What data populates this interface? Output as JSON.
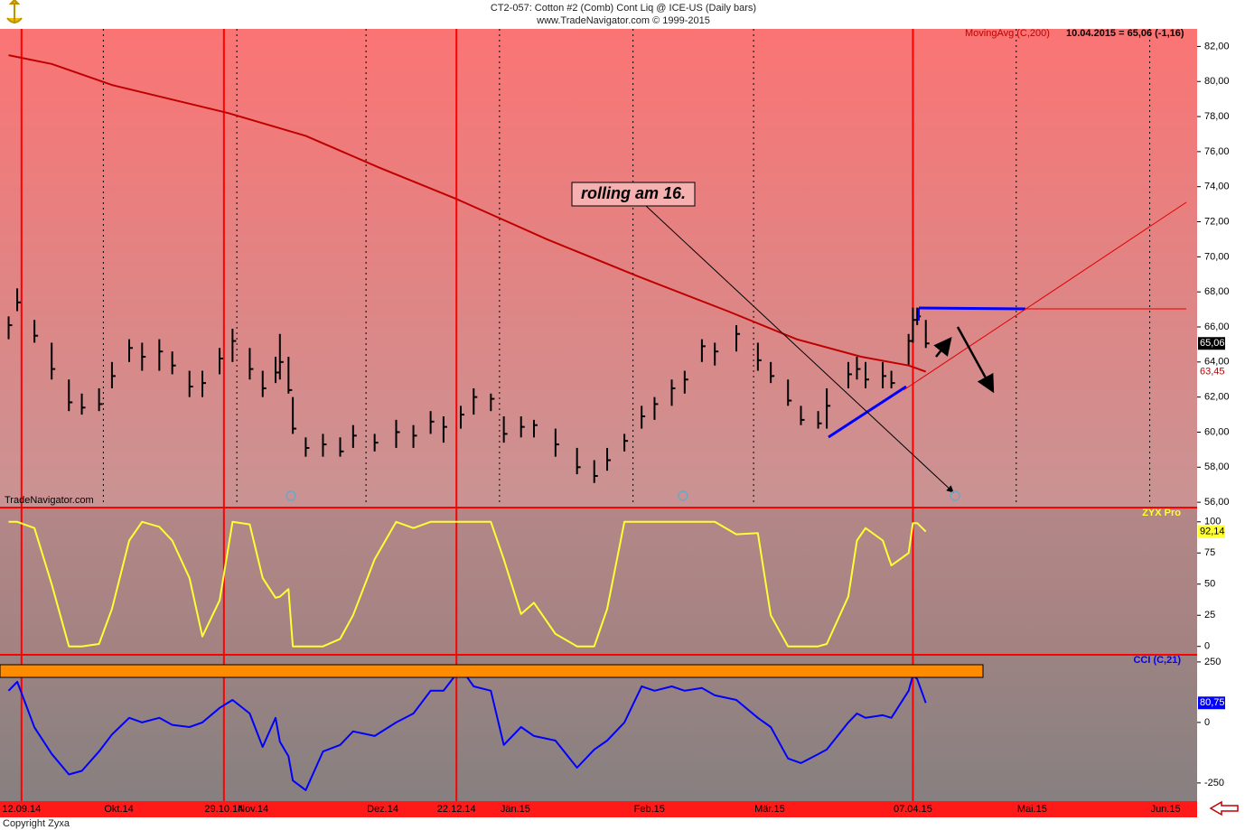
{
  "chart_data": [
    {
      "type": "ohlc",
      "title": "CT2-057:  Cotton #2 (Comb) Cont Liq @ ICE-US  (Daily bars)",
      "subtitle": "www.TradeNavigator.com © 1999-2015",
      "watermark": "TradeNavigator.com",
      "readout": "10.04.2015 = 65,06 (-1,16)",
      "annotations": [
        "rolling am 16."
      ],
      "color": "#000000",
      "xlim": [
        "2014-09-07",
        "2015-06-12"
      ],
      "ylim": [
        55.8,
        83
      ],
      "yticks": [
        {
          "value": 56,
          "label": "56,00"
        },
        {
          "value": 58,
          "label": "58,00"
        },
        {
          "value": 60,
          "label": "60,00"
        },
        {
          "value": 62,
          "label": "62,00"
        },
        {
          "value": 64,
          "label": "64,00"
        },
        {
          "value": 66,
          "label": "66,00"
        },
        {
          "value": 68,
          "label": "68,00"
        },
        {
          "value": 70,
          "label": "70,00"
        },
        {
          "value": 72,
          "label": "72,00"
        },
        {
          "value": 74,
          "label": "74,00"
        },
        {
          "value": 76,
          "label": "76,00"
        },
        {
          "value": 78,
          "label": "78,00"
        },
        {
          "value": 80,
          "label": "80,00"
        },
        {
          "value": 82,
          "label": "82,00"
        }
      ],
      "x": [
        "2014-09-09",
        "2014-09-11",
        "2014-09-15",
        "2014-09-19",
        "2014-09-23",
        "2014-09-26",
        "2014-09-30",
        "2014-10-03",
        "2014-10-07",
        "2014-10-10",
        "2014-10-14",
        "2014-10-17",
        "2014-10-21",
        "2014-10-24",
        "2014-10-28",
        "2014-10-31",
        "2014-11-04",
        "2014-11-07",
        "2014-11-10",
        "2014-11-11",
        "2014-11-13",
        "2014-11-14",
        "2014-11-17",
        "2014-11-21",
        "2014-11-25",
        "2014-11-28",
        "2014-12-03",
        "2014-12-08",
        "2014-12-12",
        "2014-12-16",
        "2014-12-19",
        "2014-12-23",
        "2014-12-26",
        "2014-12-30",
        "2015-01-02",
        "2015-01-06",
        "2015-01-09",
        "2015-01-14",
        "2015-01-19",
        "2015-01-23",
        "2015-01-26",
        "2015-01-30",
        "2015-02-03",
        "2015-02-06",
        "2015-02-10",
        "2015-02-13",
        "2015-02-17",
        "2015-02-20",
        "2015-02-25",
        "2015-03-02",
        "2015-03-05",
        "2015-03-09",
        "2015-03-12",
        "2015-03-16",
        "2015-03-18",
        "2015-03-23",
        "2015-03-25",
        "2015-03-27",
        "2015-03-31",
        "2015-04-02",
        "2015-04-06",
        "2015-04-07",
        "2015-04-08",
        "2015-04-10"
      ],
      "high": [
        66.6,
        68.2,
        66.4,
        65.1,
        63.0,
        62.2,
        62.5,
        64.0,
        65.3,
        65.1,
        65.3,
        64.6,
        63.5,
        63.5,
        64.8,
        65.9,
        64.8,
        63.5,
        64.3,
        65.6,
        64.3,
        62.0,
        59.7,
        59.9,
        59.7,
        60.4,
        59.9,
        60.7,
        60.4,
        61.2,
        60.9,
        61.5,
        62.5,
        62.2,
        60.9,
        60.9,
        60.7,
        60.2,
        59.1,
        58.4,
        59.1,
        59.9,
        61.5,
        62.0,
        63.0,
        63.5,
        65.3,
        65.1,
        66.1,
        65.1,
        64.0,
        63.0,
        61.5,
        61.2,
        62.5,
        64.0,
        64.3,
        64.0,
        64.0,
        63.5,
        65.6,
        67.1,
        67.1,
        66.4
      ],
      "low": [
        65.3,
        66.9,
        65.1,
        63.0,
        61.2,
        61.0,
        61.2,
        62.5,
        64.0,
        63.5,
        63.5,
        63.3,
        62.0,
        62.0,
        63.3,
        64.0,
        63.0,
        62.0,
        62.8,
        63.0,
        62.2,
        59.9,
        58.6,
        58.6,
        58.6,
        59.1,
        58.9,
        59.1,
        59.1,
        59.9,
        59.4,
        60.2,
        61.0,
        61.2,
        59.4,
        59.7,
        59.7,
        58.6,
        57.6,
        57.1,
        57.8,
        58.9,
        60.2,
        60.7,
        61.5,
        62.2,
        64.0,
        63.8,
        64.6,
        63.5,
        62.8,
        61.5,
        60.4,
        60.2,
        60.2,
        62.5,
        63.0,
        62.5,
        62.5,
        62.5,
        63.8,
        65.1,
        66.1,
        64.8
      ],
      "values": [
        66.1,
        67.4,
        65.5,
        63.6,
        61.7,
        61.4,
        61.6,
        63.2,
        64.8,
        64.3,
        64.6,
        63.8,
        62.6,
        62.8,
        64.2,
        65.2,
        63.6,
        62.5,
        63.4,
        64.0,
        62.4,
        60.2,
        59.1,
        59.3,
        58.9,
        59.8,
        59.4,
        60.0,
        59.8,
        60.6,
        60.3,
        61.0,
        62.0,
        61.9,
        59.9,
        60.3,
        60.4,
        59.3,
        58.0,
        57.5,
        58.4,
        59.5,
        60.9,
        61.6,
        62.5,
        63.0,
        64.9,
        64.6,
        65.6,
        64.1,
        63.2,
        61.8,
        60.7,
        60.5,
        61.5,
        63.3,
        63.6,
        63.0,
        63.2,
        62.8,
        65.2,
        66.4,
        66.6,
        65.06
      ],
      "value_labels": [
        null,
        null,
        null,
        null,
        null,
        null,
        null,
        null,
        null,
        null,
        null,
        null,
        null,
        null,
        null,
        null,
        null,
        null,
        null,
        null,
        null,
        null,
        null,
        null,
        null,
        null,
        null,
        null,
        null,
        null,
        null,
        null,
        null,
        null,
        null,
        null,
        null,
        null,
        null,
        null,
        null,
        null,
        null,
        null,
        null,
        null,
        null,
        null,
        null,
        null,
        null,
        null,
        null,
        null,
        null,
        null,
        null,
        null,
        null,
        null,
        null,
        null,
        null,
        "65,06"
      ],
      "series": [
        {
          "name": "MovingAvg (C,200)",
          "color": "#c00000",
          "x": [
            "2014-09-09",
            "2014-09-19",
            "2014-10-03",
            "2014-10-30",
            "2014-11-17",
            "2014-12-04",
            "2014-12-22",
            "2015-01-12",
            "2015-02-02",
            "2015-02-23",
            "2015-03-11",
            "2015-03-26",
            "2015-04-06",
            "2015-04-10"
          ],
          "values": [
            81.5,
            81.0,
            79.8,
            78.2,
            76.9,
            75.1,
            73.3,
            71.0,
            68.9,
            66.9,
            65.3,
            64.3,
            63.8,
            63.45
          ],
          "value_labels": [
            null,
            null,
            null,
            null,
            null,
            null,
            null,
            null,
            null,
            null,
            null,
            null,
            null,
            "63,45"
          ]
        }
      ]
    },
    {
      "type": "line",
      "title": "ZYX Pro",
      "color": "#ffff33",
      "xlim": [
        "2014-09-07",
        "2015-06-12"
      ],
      "ylim": [
        -6,
        110
      ],
      "yticks": [
        0,
        25,
        50,
        75,
        100
      ],
      "x": [
        "2014-09-09",
        "2014-09-11",
        "2014-09-15",
        "2014-09-19",
        "2014-09-23",
        "2014-09-26",
        "2014-09-30",
        "2014-10-03",
        "2014-10-07",
        "2014-10-10",
        "2014-10-14",
        "2014-10-17",
        "2014-10-21",
        "2014-10-24",
        "2014-10-28",
        "2014-10-31",
        "2014-11-04",
        "2014-11-07",
        "2014-11-10",
        "2014-11-11",
        "2014-11-13",
        "2014-11-14",
        "2014-11-17",
        "2014-11-21",
        "2014-11-25",
        "2014-11-28",
        "2014-12-03",
        "2014-12-08",
        "2014-12-12",
        "2014-12-16",
        "2014-12-19",
        "2014-12-23",
        "2014-12-26",
        "2014-12-30",
        "2015-01-02",
        "2015-01-06",
        "2015-01-09",
        "2015-01-14",
        "2015-01-19",
        "2015-01-23",
        "2015-01-26",
        "2015-01-30",
        "2015-02-03",
        "2015-02-06",
        "2015-02-10",
        "2015-02-13",
        "2015-02-17",
        "2015-02-20",
        "2015-02-25",
        "2015-03-02",
        "2015-03-05",
        "2015-03-09",
        "2015-03-12",
        "2015-03-16",
        "2015-03-18",
        "2015-03-23",
        "2015-03-25",
        "2015-03-27",
        "2015-03-31",
        "2015-04-02",
        "2015-04-06",
        "2015-04-07",
        "2015-04-08",
        "2015-04-10"
      ],
      "values": [
        100,
        100,
        95,
        50,
        0,
        0,
        2,
        30,
        85,
        100,
        96,
        85,
        55,
        8,
        37,
        100,
        98,
        55,
        39,
        40,
        46,
        0,
        0,
        0,
        6,
        25,
        70,
        100,
        95,
        100,
        100,
        100,
        100,
        100,
        70,
        26,
        35,
        10,
        0,
        0,
        30,
        100,
        100,
        100,
        100,
        100,
        100,
        100,
        90,
        91,
        25,
        0,
        0,
        0,
        2,
        40,
        85,
        95,
        85,
        65,
        75,
        99,
        99,
        92.14
      ],
      "value_labels": [
        null,
        null,
        null,
        null,
        null,
        null,
        null,
        null,
        null,
        null,
        null,
        null,
        null,
        null,
        null,
        null,
        null,
        null,
        null,
        null,
        null,
        null,
        null,
        null,
        null,
        null,
        null,
        null,
        null,
        null,
        null,
        null,
        null,
        null,
        null,
        null,
        null,
        null,
        null,
        null,
        null,
        null,
        null,
        null,
        null,
        null,
        null,
        null,
        null,
        null,
        null,
        null,
        null,
        null,
        null,
        null,
        null,
        null,
        null,
        null,
        null,
        null,
        null,
        "92,14"
      ]
    },
    {
      "type": "line",
      "title": "CCI (C,21)",
      "color": "#0000ff",
      "xlim": [
        "2014-09-07",
        "2015-06-12"
      ],
      "ylim": [
        -325,
        272
      ],
      "yticks": [
        -250,
        0,
        250
      ],
      "xticks": [
        {
          "value": "2014-10",
          "label": "Okt.14"
        },
        {
          "value": "2014-11",
          "label": "Nov.14"
        },
        {
          "value": "2014-12",
          "label": "Dez.14"
        },
        {
          "value": "2015-01",
          "label": "Jän.15"
        },
        {
          "value": "2015-02",
          "label": "Feb.15"
        },
        {
          "value": "2015-03",
          "label": "Mär.15"
        },
        {
          "value": "2015-05",
          "label": "Mai.15"
        },
        {
          "value": "2015-06",
          "label": "Jun.15"
        }
      ],
      "xmarkers": [
        {
          "value": "2014-09-12",
          "label": "12.09.14"
        },
        {
          "value": "2014-10-29",
          "label": "29.10.14"
        },
        {
          "value": "2014-12-22",
          "label": "22.12.14"
        },
        {
          "value": "2015-04-07",
          "label": "07.04.15"
        }
      ],
      "x": [
        "2014-09-09",
        "2014-09-11",
        "2014-09-15",
        "2014-09-19",
        "2014-09-23",
        "2014-09-26",
        "2014-09-30",
        "2014-10-03",
        "2014-10-07",
        "2014-10-10",
        "2014-10-14",
        "2014-10-17",
        "2014-10-21",
        "2014-10-24",
        "2014-10-28",
        "2014-10-31",
        "2014-11-04",
        "2014-11-07",
        "2014-11-10",
        "2014-11-11",
        "2014-11-13",
        "2014-11-14",
        "2014-11-17",
        "2014-11-21",
        "2014-11-25",
        "2014-11-28",
        "2014-12-03",
        "2014-12-08",
        "2014-12-12",
        "2014-12-16",
        "2014-12-19",
        "2014-12-23",
        "2014-12-26",
        "2014-12-30",
        "2015-01-02",
        "2015-01-06",
        "2015-01-09",
        "2015-01-14",
        "2015-01-19",
        "2015-01-23",
        "2015-01-26",
        "2015-01-30",
        "2015-02-03",
        "2015-02-06",
        "2015-02-10",
        "2015-02-13",
        "2015-02-17",
        "2015-02-20",
        "2015-02-25",
        "2015-03-02",
        "2015-03-05",
        "2015-03-09",
        "2015-03-12",
        "2015-03-16",
        "2015-03-18",
        "2015-03-23",
        "2015-03-25",
        "2015-03-27",
        "2015-03-31",
        "2015-04-02",
        "2015-04-06",
        "2015-04-07",
        "2015-04-08",
        "2015-04-10"
      ],
      "values": [
        131,
        168,
        -20,
        -130,
        -215,
        -200,
        -120,
        -50,
        19,
        0,
        19,
        -10,
        -19,
        0,
        60,
        93,
        37,
        -101,
        19,
        -80,
        -140,
        -240,
        -280,
        -120,
        -93,
        -37,
        -56,
        0,
        37,
        131,
        131,
        224,
        149,
        131,
        -93,
        -19,
        -56,
        -75,
        -187,
        -112,
        -75,
        0,
        149,
        131,
        149,
        131,
        142,
        112,
        93,
        19,
        -19,
        -149,
        -168,
        -131,
        -112,
        0,
        37,
        19,
        30,
        19,
        131,
        194,
        179,
        80.75
      ],
      "value_labels": [
        null,
        null,
        null,
        null,
        null,
        null,
        null,
        null,
        null,
        null,
        null,
        null,
        null,
        null,
        null,
        null,
        null,
        null,
        null,
        null,
        null,
        null,
        null,
        null,
        null,
        null,
        null,
        null,
        null,
        null,
        null,
        null,
        null,
        null,
        null,
        null,
        null,
        null,
        null,
        null,
        null,
        null,
        null,
        null,
        null,
        null,
        null,
        null,
        null,
        null,
        null,
        null,
        null,
        null,
        null,
        null,
        null,
        null,
        null,
        null,
        null,
        null,
        null,
        "80,75"
      ]
    }
  ],
  "footer": "Copyright Zyxa"
}
